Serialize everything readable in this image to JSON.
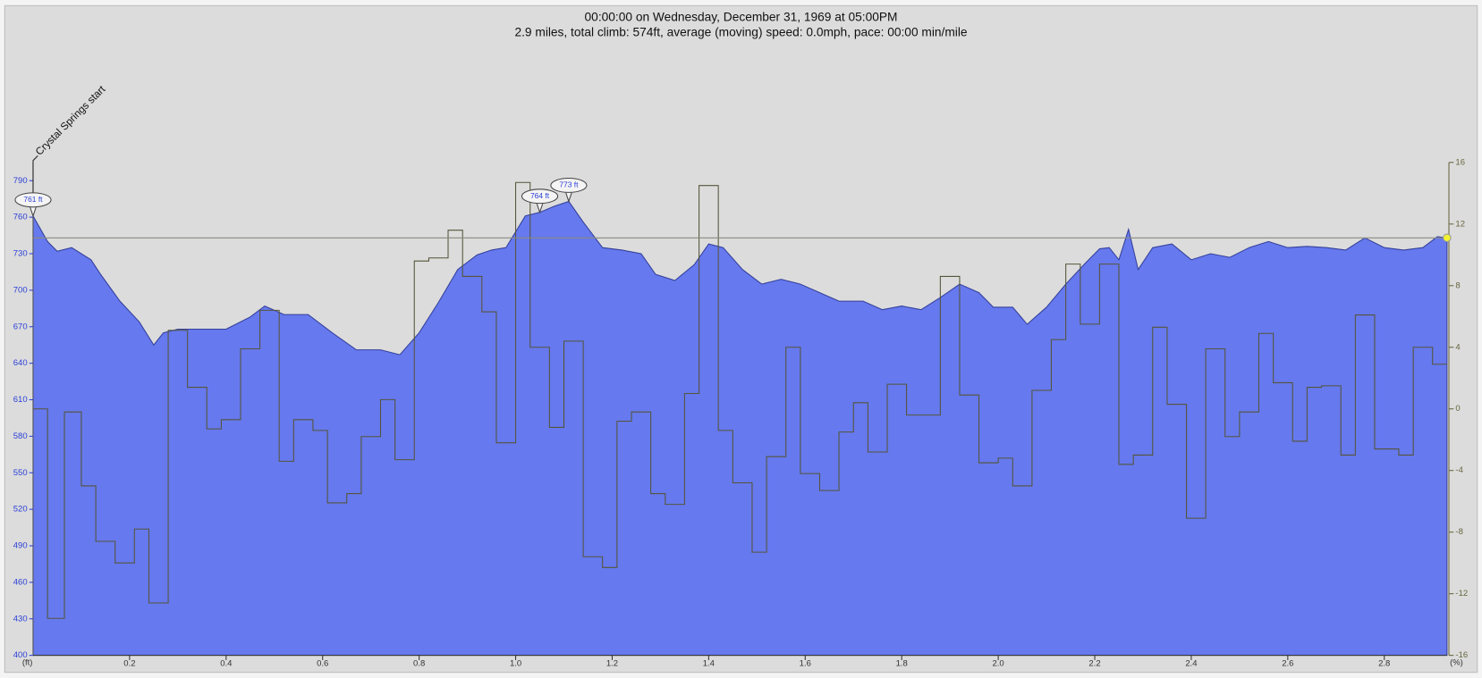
{
  "chart_data": {
    "type": "area",
    "title": "00:00:00 on Wednesday, December 31, 1969 at 05:00PM",
    "subtitle": "2.9 miles, total climb: 574ft, average (moving) speed: 0.0mph, pace: 00:00 min/mile",
    "x_unit": "(ft)",
    "y2_unit": "(%)",
    "marker": {
      "x": 0,
      "label": "Crystal Springs start"
    },
    "annotations": [
      {
        "x": 0,
        "y": 761,
        "label": "761 ft"
      },
      {
        "x": 1.05,
        "y": 764,
        "label": "764 ft"
      },
      {
        "x": 1.11,
        "y": 773,
        "label": "773 ft"
      }
    ],
    "cursor": {
      "x": 2.93,
      "y": 743,
      "color": "#f2f230"
    },
    "xlim": [
      0,
      2.93
    ],
    "xticks": [
      0.2,
      0.4,
      0.6,
      0.8,
      {
        "value": 1,
        "label": "1.0"
      },
      1.2,
      1.4,
      1.6,
      1.8,
      {
        "value": 2,
        "label": "2.0"
      },
      2.2,
      2.4,
      2.6,
      2.8
    ],
    "ylim": [
      400,
      805
    ],
    "yticks": [
      400,
      430,
      460,
      490,
      520,
      550,
      580,
      610,
      640,
      670,
      700,
      730,
      760,
      790
    ],
    "y2lim": [
      -16,
      16
    ],
    "y2ticks": [
      -16,
      -12,
      -8,
      -4,
      0,
      4,
      8,
      12,
      16
    ],
    "series": [
      {
        "type": "area",
        "color": "#6679ee",
        "x": [
          0,
          0.03,
          0.05,
          0.08,
          0.12,
          0.14,
          0.18,
          0.22,
          0.25,
          0.27,
          0.3,
          0.35,
          0.4,
          0.45,
          0.48,
          0.52,
          0.57,
          0.62,
          0.67,
          0.72,
          0.76,
          0.8,
          0.84,
          0.88,
          0.92,
          0.95,
          0.98,
          1.02,
          1.05,
          1.08,
          1.11,
          1.14,
          1.18,
          1.22,
          1.26,
          1.29,
          1.33,
          1.37,
          1.4,
          1.43,
          1.47,
          1.51,
          1.55,
          1.59,
          1.63,
          1.67,
          1.72,
          1.76,
          1.8,
          1.84,
          1.88,
          1.92,
          1.96,
          1.99,
          2.03,
          2.06,
          2.1,
          2.14,
          2.18,
          2.21,
          2.23,
          2.25,
          2.27,
          2.29,
          2.32,
          2.36,
          2.4,
          2.44,
          2.48,
          2.52,
          2.56,
          2.6,
          2.64,
          2.68,
          2.72,
          2.76,
          2.8,
          2.84,
          2.88,
          2.91,
          2.93
        ],
        "values": [
          761,
          740,
          732,
          735,
          725,
          713,
          691,
          674,
          655,
          665,
          668,
          668,
          668,
          678,
          687,
          680,
          680,
          665,
          651,
          651,
          647,
          665,
          690,
          717,
          729,
          733,
          735,
          761,
          764,
          769,
          773,
          756,
          735,
          733,
          730,
          713,
          708,
          721,
          738,
          735,
          717,
          705,
          709,
          705,
          698,
          691,
          691,
          684,
          687,
          684,
          694,
          705,
          698,
          686,
          686,
          672,
          686,
          705,
          722,
          734,
          735,
          725,
          750,
          717,
          735,
          738,
          725,
          730,
          727,
          735,
          740,
          735,
          736,
          735,
          733,
          743,
          735,
          733,
          735,
          744,
          743
        ]
      },
      {
        "type": "step",
        "axis": "y2",
        "color": "#55553a",
        "x": [
          0,
          0.03,
          0.065,
          0.1,
          0.13,
          0.17,
          0.21,
          0.24,
          0.28,
          0.32,
          0.36,
          0.39,
          0.43,
          0.47,
          0.51,
          0.54,
          0.58,
          0.61,
          0.65,
          0.68,
          0.72,
          0.75,
          0.79,
          0.82,
          0.86,
          0.89,
          0.93,
          0.96,
          1.0,
          1.03,
          1.07,
          1.1,
          1.14,
          1.18,
          1.21,
          1.24,
          1.28,
          1.31,
          1.35,
          1.38,
          1.42,
          1.45,
          1.49,
          1.52,
          1.56,
          1.59,
          1.63,
          1.67,
          1.7,
          1.73,
          1.77,
          1.81,
          1.84,
          1.88,
          1.92,
          1.96,
          2.0,
          2.03,
          2.07,
          2.11,
          2.14,
          2.17,
          2.21,
          2.25,
          2.28,
          2.32,
          2.35,
          2.39,
          2.43,
          2.47,
          2.5,
          2.54,
          2.57,
          2.61,
          2.64,
          2.67,
          2.71,
          2.74,
          2.78,
          2.83,
          2.86,
          2.9
        ],
        "values": [
          0,
          -13.6,
          -0.2,
          -5,
          -8.6,
          -10,
          -7.8,
          -12.6,
          5.1,
          1.4,
          -1.3,
          -0.7,
          3.9,
          6.4,
          -3.4,
          -0.7,
          -1.4,
          -6.1,
          -5.5,
          -1.8,
          0.6,
          -3.3,
          9.6,
          9.8,
          11.6,
          8.6,
          6.3,
          -2.2,
          14.7,
          4.0,
          -1.2,
          4.4,
          -9.6,
          -10.3,
          -0.8,
          -0.2,
          -5.5,
          -6.2,
          1.0,
          14.5,
          -1.4,
          -4.8,
          -9.3,
          -3.1,
          4.0,
          -4.2,
          -5.3,
          -1.5,
          0.4,
          -2.8,
          1.6,
          -0.4,
          -0.4,
          8.6,
          0.9,
          -3.5,
          -3.2,
          -5,
          1.2,
          4.5,
          9.4,
          5.5,
          9.4,
          -3.6,
          -3,
          5.3,
          0.3,
          -7.1,
          3.9,
          -1.8,
          -0.2,
          4.9,
          1.7,
          -2.1,
          1.4,
          1.5,
          -3,
          6.1,
          -2.6,
          -3,
          4.0,
          2.9
        ]
      }
    ]
  }
}
